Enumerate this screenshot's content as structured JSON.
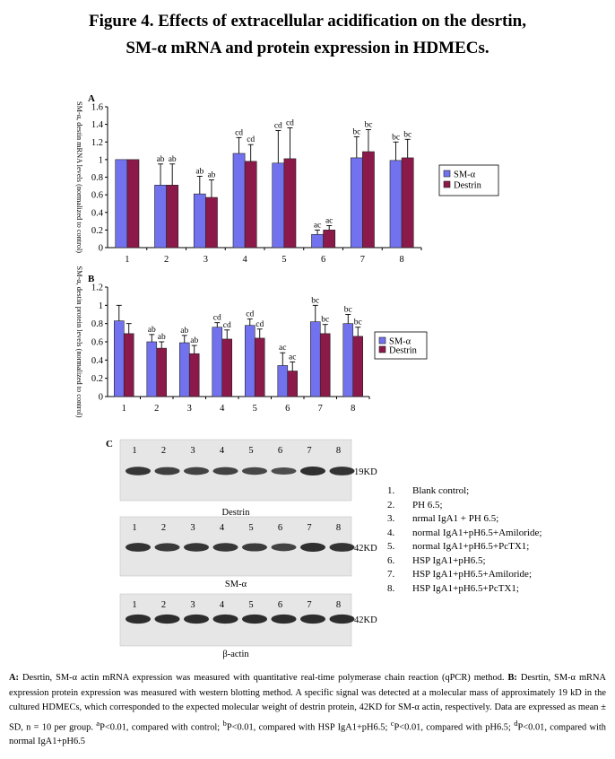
{
  "title": {
    "line1": "Figure 4. Effects of extracellular acidification on the desrtin,",
    "line2": "SM-α mRNA and protein expression in HDMECs."
  },
  "colors": {
    "sm_alpha": "#7272ee",
    "destrin": "#8b1a4b"
  },
  "chart_data": [
    {
      "panel_label": "A",
      "type": "bar",
      "ylabel": "SM-α, destin mRNA levels (normalized to control)",
      "ylim": [
        0,
        1.6
      ],
      "yticks": [
        "0",
        "0.2",
        "0.4",
        "0.6",
        "0.8",
        "1",
        "1.2",
        "1.4",
        "1.6"
      ],
      "categories": [
        "1",
        "2",
        "3",
        "4",
        "5",
        "6",
        "7",
        "8"
      ],
      "legend_position": "right",
      "series": [
        {
          "name": "SM-α",
          "values": [
            1.0,
            0.71,
            0.61,
            1.07,
            0.96,
            0.15,
            1.02,
            0.99
          ],
          "errors": [
            0,
            0.24,
            0.2,
            0.18,
            0.37,
            0.05,
            0.24,
            0.21
          ]
        },
        {
          "name": "Destrin",
          "values": [
            1.0,
            0.71,
            0.57,
            0.98,
            1.01,
            0.2,
            1.09,
            1.02
          ],
          "errors": [
            0,
            0.24,
            0.2,
            0.19,
            0.35,
            0.05,
            0.25,
            0.21
          ]
        }
      ],
      "annotations": [
        [
          "",
          ""
        ],
        [
          "ab",
          "ab"
        ],
        [
          "ab",
          "ab"
        ],
        [
          "cd",
          "cd"
        ],
        [
          "cd",
          "cd"
        ],
        [
          "ac",
          "ac"
        ],
        [
          "bc",
          "bc"
        ],
        [
          "bc",
          "bc"
        ]
      ]
    },
    {
      "panel_label": "B",
      "type": "bar",
      "ylabel": "SM-α, destin protein levels (normalized to control)",
      "ylim": [
        0,
        1.2
      ],
      "yticks": [
        "0",
        "0.2",
        "0.4",
        "0.6",
        "0.8",
        "1",
        "1.2"
      ],
      "categories": [
        "1",
        "2",
        "3",
        "4",
        "5",
        "6",
        "7",
        "8"
      ],
      "legend_position": "right",
      "series": [
        {
          "name": "SM-α",
          "values": [
            0.83,
            0.6,
            0.59,
            0.76,
            0.78,
            0.34,
            0.82,
            0.8
          ],
          "errors": [
            0.17,
            0.08,
            0.08,
            0.05,
            0.07,
            0.14,
            0.18,
            0.1
          ]
        },
        {
          "name": "Destrin",
          "values": [
            0.69,
            0.53,
            0.47,
            0.63,
            0.64,
            0.28,
            0.69,
            0.66
          ],
          "errors": [
            0.11,
            0.07,
            0.09,
            0.1,
            0.1,
            0.1,
            0.1,
            0.1
          ]
        }
      ],
      "annotations": [
        [
          "",
          ""
        ],
        [
          "ab",
          "ab"
        ],
        [
          "ab",
          "ab"
        ],
        [
          "cd",
          "cd"
        ],
        [
          "cd",
          "cd"
        ],
        [
          "ac",
          "ac"
        ],
        [
          "bc",
          "bc"
        ],
        [
          "bc",
          "bc"
        ]
      ]
    }
  ],
  "blots": {
    "panel_label": "C",
    "lane_labels": [
      "1",
      "2",
      "3",
      "4",
      "5",
      "6",
      "7",
      "8"
    ],
    "rows": [
      {
        "name": "Destrin",
        "marker": "19KD",
        "intensities": [
          0.8,
          0.65,
          0.6,
          0.62,
          0.55,
          0.45,
          0.9,
          0.85
        ]
      },
      {
        "name": "SM-α",
        "marker": "42KD",
        "intensities": [
          0.85,
          0.75,
          0.8,
          0.78,
          0.7,
          0.6,
          0.9,
          0.85
        ]
      },
      {
        "name": "β-actin",
        "marker": "42KD",
        "intensities": [
          0.95,
          0.95,
          0.95,
          0.95,
          0.95,
          0.95,
          0.95,
          0.95
        ]
      }
    ]
  },
  "group_legend": [
    {
      "num": "1.",
      "text": "Blank control;"
    },
    {
      "num": "2.",
      "text": "PH 6.5;"
    },
    {
      "num": "3.",
      "text": "nrmal IgA1 + PH 6.5;"
    },
    {
      "num": "4.",
      "text": "normal IgA1+pH6.5+Amiloride;"
    },
    {
      "num": "5.",
      "text": "normal IgA1+pH6.5+PcTX1;"
    },
    {
      "num": "6.",
      "text": "HSP IgA1+pH6.5;"
    },
    {
      "num": "7.",
      "text": "HSP IgA1+pH6.5+Amiloride;"
    },
    {
      "num": "8.",
      "text": "HSP IgA1+pH6.5+PcTX1;"
    }
  ],
  "caption": {
    "a_label": "A:",
    "a_text": " Desrtin, SM-α actin mRNA expression was measured with quantitative real-time polymerase chain reaction (qPCR) method. ",
    "b_label": "B:",
    "b_text": " Desrtin, SM-α mRNA expression protein expression was measured with western blotting method. A specific signal was detected at a molecular mass of approximately 19 kD in the cultured HDMECs, which corresponded to the expected molecular weight of destrin protein, 42KD for SM-α actin, respectively. Data are expressed as mean ± SD, n = 10 per group. ",
    "sup_a": "a",
    "t_a": "P<0.01, compared with control; ",
    "sup_b": "b",
    "t_b": "P<0.01, compared with HSP IgA1+pH6.5; ",
    "sup_c": "c",
    "t_c": "P<0.01, compared with pH6.5; ",
    "sup_d": "d",
    "t_d": "P<0.01, compared with normal IgA1+pH6.5"
  }
}
